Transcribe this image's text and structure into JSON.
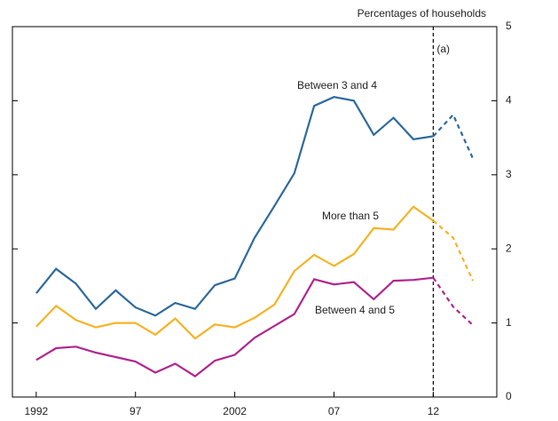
{
  "chart_data": {
    "type": "line",
    "title": "Percentages of households",
    "x": [
      1992,
      1993,
      1994,
      1995,
      1996,
      1997,
      1998,
      1999,
      2000,
      2001,
      2002,
      2003,
      2004,
      2005,
      2006,
      2007,
      2008,
      2009,
      2010,
      2011,
      2012,
      2013,
      2014
    ],
    "series": [
      {
        "name": "Between 3 and 4",
        "color": "#2e6a9e",
        "values": [
          1.4,
          1.73,
          1.53,
          1.19,
          1.44,
          1.21,
          1.1,
          1.27,
          1.19,
          1.51,
          1.6,
          2.15,
          2.58,
          3.02,
          3.93,
          4.05,
          4.0,
          3.54,
          3.77,
          3.48,
          3.52,
          3.81,
          3.22
        ]
      },
      {
        "name": "More than 5",
        "color": "#f5b324",
        "values": [
          0.95,
          1.23,
          1.04,
          0.94,
          1.0,
          1.0,
          0.84,
          1.06,
          0.79,
          0.98,
          0.94,
          1.07,
          1.25,
          1.7,
          1.92,
          1.77,
          1.93,
          2.28,
          2.26,
          2.57,
          2.38,
          2.15,
          1.57
        ]
      },
      {
        "name": "Between 4 and 5",
        "color": "#b0278f",
        "values": [
          0.5,
          0.66,
          0.68,
          0.6,
          0.54,
          0.48,
          0.33,
          0.45,
          0.28,
          0.49,
          0.57,
          0.8,
          0.96,
          1.12,
          1.59,
          1.52,
          1.55,
          1.32,
          1.57,
          1.58,
          1.61,
          1.22,
          0.97
        ]
      }
    ],
    "vline": {
      "x": 2012,
      "label": "(a)"
    },
    "xlim": [
      1990.8,
      2015.2
    ],
    "xticks": [
      1992,
      {
        "value": 1997,
        "label": "97"
      },
      2002,
      {
        "value": 2007,
        "label": "07"
      },
      {
        "value": 2012,
        "label": "12"
      }
    ],
    "ylim": [
      0,
      5
    ],
    "yticks": [
      0,
      1,
      2,
      3,
      4,
      5
    ],
    "y_axis_side": "right"
  }
}
